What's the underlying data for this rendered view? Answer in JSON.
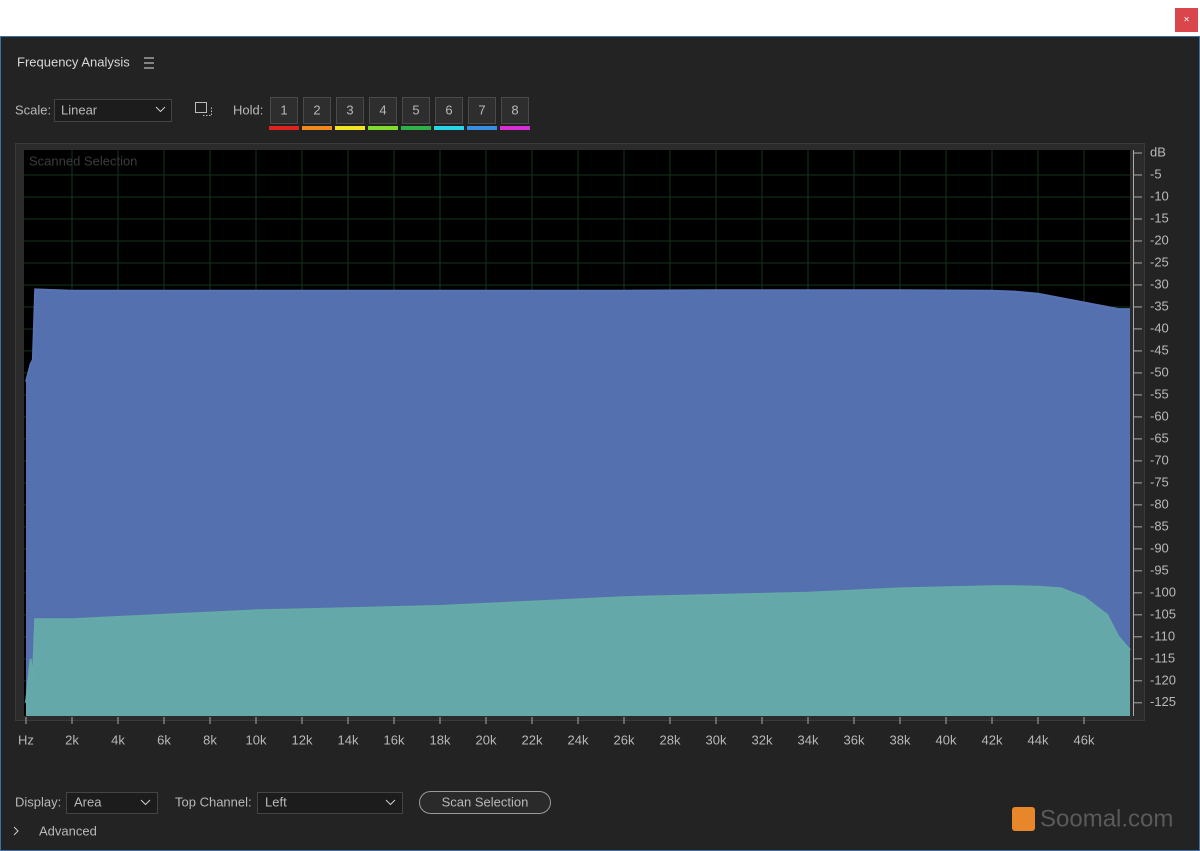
{
  "window": {
    "close": "×"
  },
  "panel": {
    "title": "Frequency Analysis",
    "scale_label": "Scale:",
    "scale_value": "Linear",
    "hold_label": "Hold:",
    "hold_buttons": [
      "1",
      "2",
      "3",
      "4",
      "5",
      "6",
      "7",
      "8"
    ],
    "hold_colors": [
      "#e0231d",
      "#f08a1c",
      "#f2e51f",
      "#7fdc2a",
      "#2fb14a",
      "#27d6e6",
      "#3a8fe3",
      "#d92fd6"
    ],
    "display_label": "Display:",
    "display_value": "Area",
    "channel_label": "Top Channel:",
    "channel_value": "Left",
    "scan_button": "Scan Selection",
    "advanced": "Advanced",
    "watermark": "Soomal.com"
  },
  "chart_data": {
    "type": "area",
    "annotation": "Scanned Selection",
    "x": [
      0,
      200,
      300,
      400,
      2000,
      6000,
      10000,
      14000,
      18000,
      22000,
      26000,
      30000,
      34000,
      38000,
      42000,
      43000,
      44000,
      45000,
      46000,
      47000,
      47500,
      48000
    ],
    "series": [
      {
        "color": "#5874b5",
        "values": [
          -52,
          -48,
          -47,
          -31,
          -31.3,
          -31.3,
          -31.3,
          -31.3,
          -31.3,
          -31.3,
          -31.3,
          -31.2,
          -31.2,
          -31.2,
          -31.3,
          -31.5,
          -32,
          -33,
          -34,
          -35,
          -35.5,
          -35.5
        ]
      },
      {
        "color": "#66aaa8",
        "values": [
          -125,
          -115,
          -120,
          -106,
          -106,
          -105,
          -104,
          -103.5,
          -103,
          -102,
          -101,
          -100.5,
          -100,
          -99,
          -98.5,
          -98.5,
          -98.6,
          -99,
          -101,
          -105,
          -110,
          -113
        ]
      }
    ],
    "xlim": [
      0,
      48000
    ],
    "xticks": [
      {
        "value": 0,
        "label": "Hz"
      },
      {
        "value": 2000,
        "label": "2k"
      },
      {
        "value": 4000,
        "label": "4k"
      },
      {
        "value": 6000,
        "label": "6k"
      },
      {
        "value": 8000,
        "label": "8k"
      },
      {
        "value": 10000,
        "label": "10k"
      },
      {
        "value": 12000,
        "label": "12k"
      },
      {
        "value": 14000,
        "label": "14k"
      },
      {
        "value": 16000,
        "label": "16k"
      },
      {
        "value": 18000,
        "label": "18k"
      },
      {
        "value": 20000,
        "label": "20k"
      },
      {
        "value": 22000,
        "label": "22k"
      },
      {
        "value": 24000,
        "label": "24k"
      },
      {
        "value": 26000,
        "label": "26k"
      },
      {
        "value": 28000,
        "label": "28k"
      },
      {
        "value": 30000,
        "label": "30k"
      },
      {
        "value": 32000,
        "label": "32k"
      },
      {
        "value": 34000,
        "label": "34k"
      },
      {
        "value": 36000,
        "label": "36k"
      },
      {
        "value": 38000,
        "label": "38k"
      },
      {
        "value": 40000,
        "label": "40k"
      },
      {
        "value": 42000,
        "label": "42k"
      },
      {
        "value": 44000,
        "label": "44k"
      },
      {
        "value": 46000,
        "label": "46k"
      }
    ],
    "ylim": [
      -128,
      0
    ],
    "yticks": [
      {
        "value": 0,
        "label": "dB"
      },
      -5,
      -10,
      -15,
      -20,
      -25,
      -30,
      -35,
      -40,
      -45,
      -50,
      -55,
      -60,
      -65,
      -70,
      -75,
      -80,
      -85,
      -90,
      -95,
      -100,
      -105,
      -110,
      -115,
      -120,
      -125
    ],
    "grid": true,
    "grid_color": "#14351a"
  }
}
